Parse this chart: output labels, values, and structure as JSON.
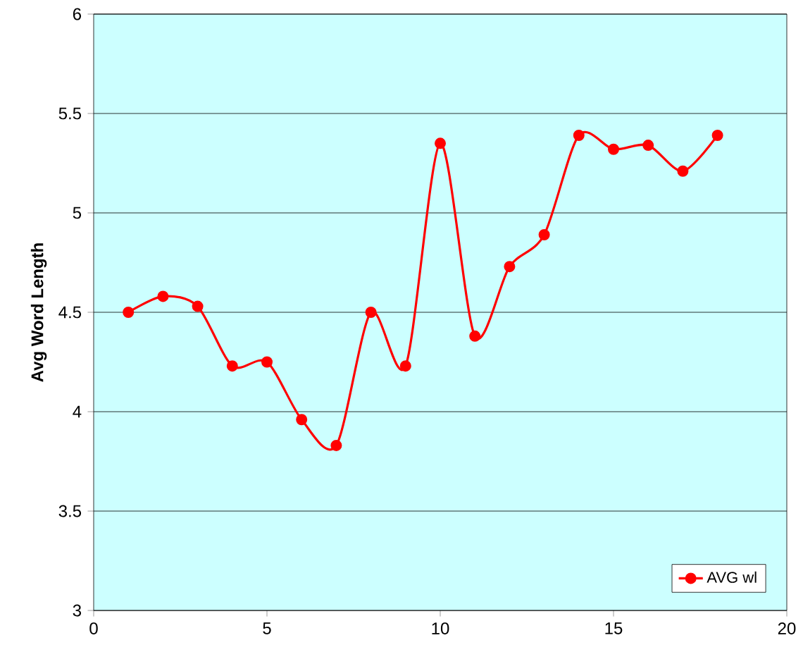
{
  "chart_data": {
    "type": "line",
    "ylabel": "Avg Word Length",
    "x": [
      1,
      2,
      3,
      4,
      5,
      6,
      7,
      8,
      9,
      10,
      11,
      12,
      13,
      14,
      15,
      16,
      17,
      18
    ],
    "series": [
      {
        "name": "AVG wl",
        "color": "#ff0000",
        "values": [
          4.5,
          4.58,
          4.53,
          4.23,
          4.25,
          3.96,
          3.83,
          4.5,
          4.23,
          5.35,
          4.38,
          4.73,
          4.89,
          5.39,
          5.32,
          5.34,
          5.21,
          5.39
        ]
      }
    ],
    "xlim": [
      0,
      20
    ],
    "ylim": [
      3,
      6
    ],
    "xticks": [
      0,
      5,
      10,
      15,
      20
    ],
    "yticks": [
      3,
      3.5,
      4,
      4.5,
      5,
      5.5,
      6
    ],
    "grid": "y",
    "legend": "bottom right",
    "marker": "circle",
    "line_style": "solid"
  }
}
